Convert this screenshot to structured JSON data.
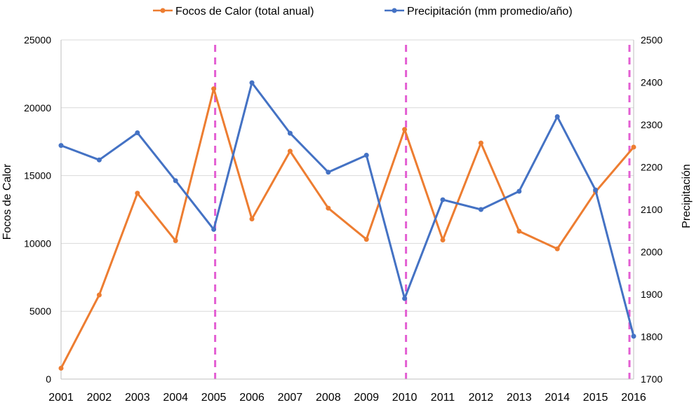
{
  "chart_data": {
    "type": "line",
    "categories": [
      "2001",
      "2002",
      "2003",
      "2004",
      "2005",
      "2006",
      "2007",
      "2008",
      "2009",
      "2010",
      "2011",
      "2012",
      "2013",
      "2014",
      "2015",
      "2016"
    ],
    "series": [
      {
        "name": "Focos de Calor (total anual)",
        "axis": "left",
        "color": "#ED7D31",
        "values": [
          800,
          6200,
          13700,
          10200,
          21400,
          11800,
          16800,
          12600,
          10300,
          18400,
          10250,
          17400,
          10900,
          9600,
          13800,
          17100
        ]
      },
      {
        "name": "Precipitación (mm promedio/año)",
        "axis": "right",
        "color": "#4472C4",
        "values": [
          2251,
          2217,
          2281,
          2168,
          2053,
          2399,
          2280,
          2188,
          2228,
          1890,
          2123,
          2100,
          2143,
          2319,
          2146,
          1801
        ]
      }
    ],
    "ylabel_left": "Focos de Calor",
    "ylabel_right": "Precipitación",
    "ylim_left": [
      0,
      25000
    ],
    "yticks_left": [
      "0",
      "5000",
      "10000",
      "15000",
      "20000",
      "25000"
    ],
    "ylim_right": [
      1700,
      2500
    ],
    "yticks_right": [
      "1700",
      "1800",
      "1900",
      "2000",
      "2100",
      "2200",
      "2300",
      "2400",
      "2500"
    ],
    "grid": true,
    "legend_position": "top",
    "marker_years": [
      "2005",
      "2010",
      "2016"
    ],
    "marker_color": "#E35FD3"
  }
}
